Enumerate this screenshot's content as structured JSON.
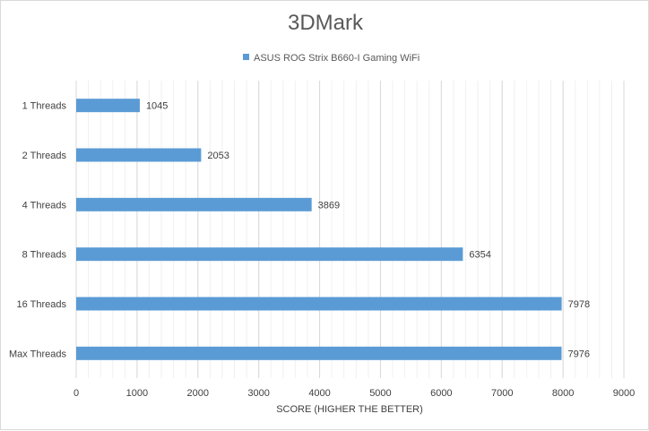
{
  "chart_data": {
    "type": "bar",
    "orientation": "horizontal",
    "title": "3DMark",
    "categories": [
      "1 Threads",
      "2 Threads",
      "4 Threads",
      "8 Threads",
      "16 Threads",
      "Max Threads"
    ],
    "series": [
      {
        "name": "ASUS ROG Strix B660-I Gaming WiFi",
        "color": "#5b9bd5",
        "values": [
          1045,
          2053,
          3869,
          6354,
          7978,
          7976
        ]
      }
    ],
    "xlabel": "SCORE (HIGHER THE BETTER)",
    "ylabel": "",
    "xlim": [
      0,
      9000
    ],
    "xticks": [
      0,
      1000,
      2000,
      3000,
      4000,
      5000,
      6000,
      7000,
      8000,
      9000
    ],
    "major_grid": true,
    "minor_grid": true,
    "legend_position": "top",
    "data_labels": true
  }
}
